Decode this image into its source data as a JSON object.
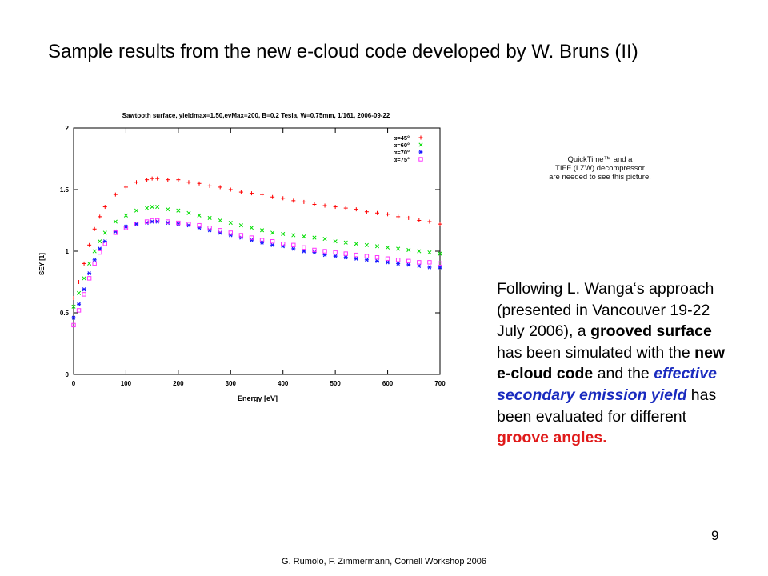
{
  "slide": {
    "title": "Sample results from the new e-cloud code developed by W. Bruns (II)",
    "qt_placeholder": [
      "QuickTime™ and a",
      "TIFF (LZW) decompressor",
      "are needed to see this picture."
    ],
    "body": {
      "p1": "Following L. Wanga‘s approach (presented in Vancouver 19-22 July 2006), a ",
      "b1": "grooved surface",
      "p2": " has been simulated with the ",
      "b2": "new e-cloud code",
      "p3": " and the ",
      "blue1": "effective secondary emission yield",
      "p4": " has been evaluated for different ",
      "red1": "groove angles."
    },
    "page_number": "9",
    "footer": "G. Rumolo, F. Zimmermann, Cornell Workshop 2006"
  },
  "chart_data": {
    "type": "scatter",
    "title": "Sawtooth surface, yieldmax=1.50,evMax=200, B=0.2 Tesla, W=0.75mm, 1/161, 2006-09-22",
    "xlabel": "Energy [eV]",
    "ylabel": "SEY [1]",
    "xlim": [
      0,
      700
    ],
    "ylim": [
      0,
      2
    ],
    "xticks": [
      0,
      100,
      200,
      300,
      400,
      500,
      600,
      700
    ],
    "yticks": [
      0,
      0.5,
      1,
      1.5,
      2
    ],
    "legend_position": "top-right",
    "series": [
      {
        "name": "α=45°",
        "color": "#ff0000",
        "marker": "+",
        "x": [
          0,
          10,
          20,
          30,
          40,
          50,
          60,
          80,
          100,
          120,
          140,
          150,
          160,
          180,
          200,
          220,
          240,
          260,
          280,
          300,
          320,
          340,
          360,
          380,
          400,
          420,
          440,
          460,
          480,
          500,
          520,
          540,
          560,
          580,
          600,
          620,
          640,
          660,
          680,
          700
        ],
        "y": [
          0.62,
          0.75,
          0.9,
          1.05,
          1.18,
          1.28,
          1.36,
          1.46,
          1.52,
          1.56,
          1.58,
          1.59,
          1.59,
          1.58,
          1.58,
          1.56,
          1.55,
          1.53,
          1.52,
          1.5,
          1.48,
          1.47,
          1.46,
          1.44,
          1.43,
          1.41,
          1.4,
          1.38,
          1.37,
          1.36,
          1.35,
          1.34,
          1.32,
          1.31,
          1.3,
          1.28,
          1.27,
          1.25,
          1.24,
          1.22
        ]
      },
      {
        "name": "α=60°",
        "color": "#00dd00",
        "marker": "×",
        "x": [
          0,
          10,
          20,
          30,
          40,
          50,
          60,
          80,
          100,
          120,
          140,
          150,
          160,
          180,
          200,
          220,
          240,
          260,
          280,
          300,
          320,
          340,
          360,
          380,
          400,
          420,
          440,
          460,
          480,
          500,
          520,
          540,
          560,
          580,
          600,
          620,
          640,
          660,
          680,
          700
        ],
        "y": [
          0.55,
          0.66,
          0.78,
          0.9,
          1.0,
          1.08,
          1.15,
          1.24,
          1.29,
          1.33,
          1.35,
          1.36,
          1.36,
          1.34,
          1.33,
          1.31,
          1.29,
          1.27,
          1.25,
          1.23,
          1.21,
          1.19,
          1.17,
          1.15,
          1.14,
          1.13,
          1.12,
          1.11,
          1.1,
          1.08,
          1.07,
          1.06,
          1.05,
          1.04,
          1.03,
          1.02,
          1.01,
          1.0,
          0.99,
          0.98
        ]
      },
      {
        "name": "α=70°",
        "color": "#1a1aff",
        "marker": "*",
        "x": [
          0,
          10,
          20,
          30,
          40,
          50,
          60,
          80,
          100,
          120,
          140,
          150,
          160,
          180,
          200,
          220,
          240,
          260,
          280,
          300,
          320,
          340,
          360,
          380,
          400,
          420,
          440,
          460,
          480,
          500,
          520,
          540,
          560,
          580,
          600,
          620,
          640,
          660,
          680,
          700
        ],
        "y": [
          0.46,
          0.57,
          0.69,
          0.82,
          0.93,
          1.02,
          1.08,
          1.16,
          1.2,
          1.22,
          1.23,
          1.24,
          1.24,
          1.23,
          1.22,
          1.21,
          1.19,
          1.17,
          1.15,
          1.13,
          1.11,
          1.09,
          1.07,
          1.05,
          1.04,
          1.02,
          1.0,
          0.99,
          0.97,
          0.96,
          0.95,
          0.94,
          0.93,
          0.92,
          0.91,
          0.9,
          0.89,
          0.88,
          0.87,
          0.87
        ]
      },
      {
        "name": "α=75°",
        "color": "#ff33ff",
        "marker": "□",
        "x": [
          0,
          10,
          20,
          30,
          40,
          50,
          60,
          80,
          100,
          120,
          140,
          150,
          160,
          180,
          200,
          220,
          240,
          260,
          280,
          300,
          320,
          340,
          360,
          380,
          400,
          420,
          440,
          460,
          480,
          500,
          520,
          540,
          560,
          580,
          600,
          620,
          640,
          660,
          680,
          700
        ],
        "y": [
          0.4,
          0.52,
          0.65,
          0.78,
          0.9,
          0.99,
          1.06,
          1.15,
          1.19,
          1.22,
          1.24,
          1.25,
          1.25,
          1.24,
          1.23,
          1.22,
          1.21,
          1.19,
          1.17,
          1.15,
          1.13,
          1.11,
          1.09,
          1.08,
          1.06,
          1.05,
          1.03,
          1.01,
          1.0,
          0.99,
          0.98,
          0.97,
          0.96,
          0.95,
          0.94,
          0.93,
          0.92,
          0.91,
          0.91,
          0.9
        ]
      }
    ]
  }
}
